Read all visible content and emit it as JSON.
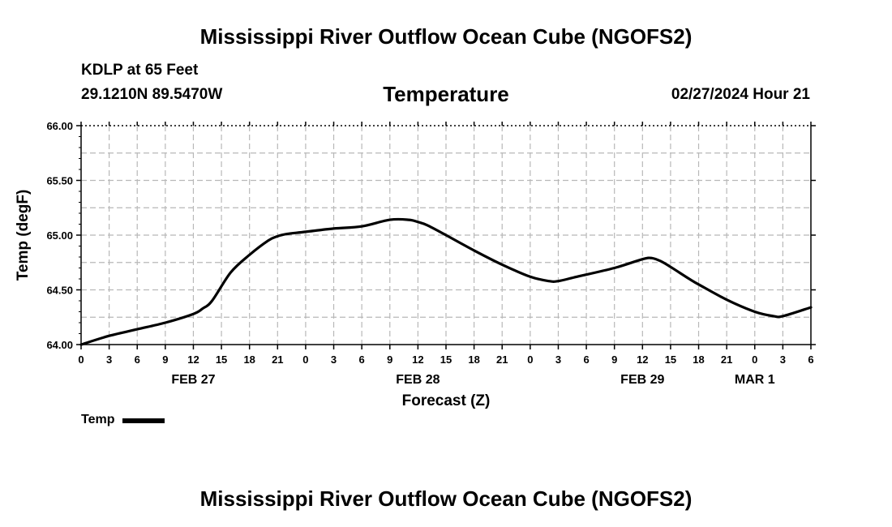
{
  "header": {
    "title_top": "Mississippi River Outflow Ocean Cube (NGOFS2)",
    "title_bottom": "Mississippi River Outflow Ocean Cube (NGOFS2)",
    "station": "KDLP at 65 Feet",
    "coords": "29.1210N  89.5470W",
    "date": "02/27/2024 Hour 21"
  },
  "legend": {
    "label": "Temp"
  },
  "chart_data": {
    "type": "line",
    "title": "Temperature",
    "xlabel": "Forecast (Z)",
    "ylabel": "Temp (degF)",
    "ylim": [
      64.0,
      66.0
    ],
    "xlim": [
      0,
      78
    ],
    "yticks": [
      "64.00",
      "64.50",
      "65.00",
      "65.50",
      "66.00"
    ],
    "xtick_labels": [
      "0",
      "3",
      "6",
      "9",
      "12",
      "15",
      "18",
      "21",
      "0",
      "3",
      "6",
      "9",
      "12",
      "15",
      "18",
      "21",
      "0",
      "3",
      "6",
      "9",
      "12",
      "15",
      "18",
      "21",
      "0",
      "3",
      "6"
    ],
    "date_labels": [
      {
        "label": "FEB 27",
        "hour": 12
      },
      {
        "label": "FEB 28",
        "hour": 36
      },
      {
        "label": "FEB 29",
        "hour": 60
      },
      {
        "label": "MAR 1",
        "hour": 72
      }
    ],
    "grid": true,
    "series": [
      {
        "name": "Temp",
        "color": "#000000",
        "x": [
          0,
          3,
          6,
          9,
          12,
          13,
          14,
          16,
          18,
          20,
          21,
          22,
          24,
          27,
          30,
          33,
          35,
          36,
          37,
          39,
          42,
          45,
          48,
          50,
          51,
          53,
          57,
          60,
          61,
          62,
          63,
          65,
          66,
          69,
          72,
          74,
          75,
          78
        ],
        "values": [
          64.0,
          64.08,
          64.14,
          64.2,
          64.28,
          64.33,
          64.4,
          64.66,
          64.82,
          64.95,
          64.99,
          65.01,
          65.03,
          65.06,
          65.08,
          65.14,
          65.14,
          65.12,
          65.09,
          65.0,
          64.86,
          64.73,
          64.62,
          64.58,
          64.58,
          64.62,
          64.7,
          64.78,
          64.79,
          64.76,
          64.71,
          64.6,
          64.55,
          64.41,
          64.3,
          64.26,
          64.26,
          64.34
        ]
      }
    ]
  }
}
